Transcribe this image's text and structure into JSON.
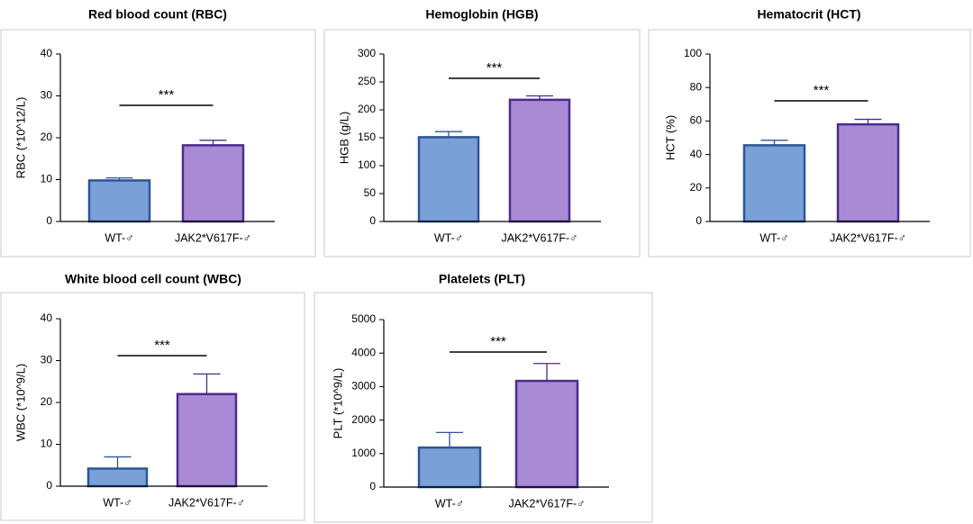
{
  "chart_data": [
    {
      "type": "bar",
      "title": "Red blood count (RBC)",
      "y_label": "RBC (*10^12/L)",
      "categories": [
        "WT-♂",
        "JAK2*V617F-♂"
      ],
      "values": [
        9.8,
        18.2
      ],
      "errors": [
        0.6,
        1.2
      ],
      "colors": [
        "#7aa0d8",
        "#a88bd4"
      ],
      "edge_colors": [
        "#2f5597",
        "#4b2c8c"
      ],
      "ylim": [
        0,
        40
      ],
      "yticks": [
        0,
        10,
        20,
        30,
        40
      ],
      "annotation": "***"
    },
    {
      "type": "bar",
      "title": "Hemoglobin (HGB)",
      "y_label": "HGB (g/L)",
      "categories": [
        "WT-♂",
        "JAK2*V617F-♂"
      ],
      "values": [
        151,
        218
      ],
      "errors": [
        10,
        7
      ],
      "colors": [
        "#7aa0d8",
        "#a88bd4"
      ],
      "edge_colors": [
        "#2f5597",
        "#4b2c8c"
      ],
      "ylim": [
        0,
        300
      ],
      "yticks": [
        0,
        50,
        100,
        150,
        200,
        250,
        300
      ],
      "annotation": "***"
    },
    {
      "type": "bar",
      "title": "Hematocrit (HCT)",
      "y_label": "HCT (%)",
      "categories": [
        "WT-♂",
        "JAK2*V617F-♂"
      ],
      "values": [
        45.5,
        58
      ],
      "errors": [
        3,
        3
      ],
      "colors": [
        "#7aa0d8",
        "#a88bd4"
      ],
      "edge_colors": [
        "#2f5597",
        "#4b2c8c"
      ],
      "ylim": [
        0,
        100
      ],
      "yticks": [
        0,
        20,
        40,
        60,
        80,
        100
      ],
      "annotation": "***"
    },
    {
      "type": "bar",
      "title": "White blood cell count (WBC)",
      "y_label": "WBC (*10^9/L)",
      "categories": [
        "WT-♂",
        "JAK2*V617F-♂"
      ],
      "values": [
        4.2,
        22
      ],
      "errors": [
        2.8,
        4.8
      ],
      "colors": [
        "#7aa0d8",
        "#a88bd4"
      ],
      "edge_colors": [
        "#2f5597",
        "#4b2c8c"
      ],
      "ylim": [
        0,
        40
      ],
      "yticks": [
        0,
        10,
        20,
        30,
        40
      ],
      "annotation": "***"
    },
    {
      "type": "bar",
      "title": "Platelets (PLT)",
      "y_label": "PLT (*10^9/L)",
      "categories": [
        "WT-♂",
        "JAK2*V617F-♂"
      ],
      "values": [
        1180,
        3170
      ],
      "errors": [
        450,
        520
      ],
      "colors": [
        "#7aa0d8",
        "#a88bd4"
      ],
      "edge_colors": [
        "#2f5597",
        "#4b2c8c"
      ],
      "ylim": [
        0,
        5000
      ],
      "yticks": [
        0,
        1000,
        2000,
        3000,
        4000,
        5000
      ],
      "annotation": "***"
    }
  ]
}
